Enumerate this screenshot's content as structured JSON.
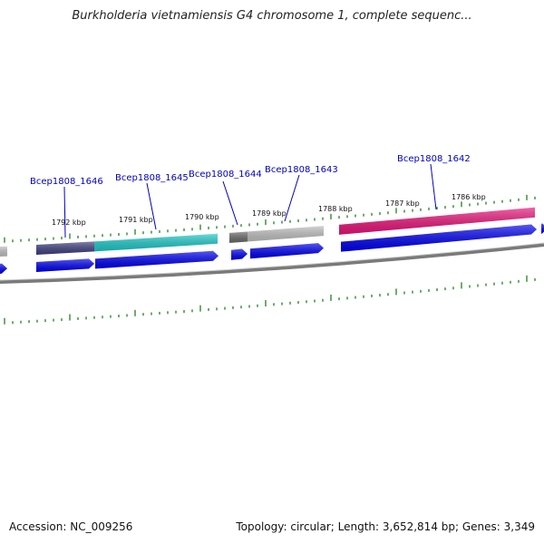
{
  "title": "Burkholderia vietnamiensis G4 chromosome 1, complete sequenc...",
  "footer": {
    "accession": "Accession: NC_009256",
    "stats": "Topology: circular; Length: 3,652,814 bp; Genes: 3,349"
  },
  "colors": {
    "backbone": "#7a7a7a",
    "tick": "#2e8b2e",
    "cds_arrow": "#0000ee",
    "label": "#0000c0"
  },
  "ticks": [
    {
      "label": "1792 kbp"
    },
    {
      "label": "1791 kbp"
    },
    {
      "label": "1790 kbp"
    },
    {
      "label": "1789 kbp"
    },
    {
      "label": "1788 kbp"
    },
    {
      "label": "1787 kbp"
    },
    {
      "label": "1786 kbp"
    }
  ],
  "genes": [
    {
      "name": "Bcep1808_1646",
      "color_a": "#3f3f7f",
      "color_b": "#1ec8c8"
    },
    {
      "name": "Bcep1808_1645",
      "color_a": "#1ec8c8",
      "color_b": "#1ec8c8"
    },
    {
      "name": "Bcep1808_1644",
      "color_a": "#6a6a6a",
      "color_b": "#c0c0c0"
    },
    {
      "name": "Bcep1808_1643",
      "color_a": "#c0c0c0",
      "color_b": "#c0c0c0"
    },
    {
      "name": "Bcep1808_1642",
      "color_a": "#e8147a",
      "color_b": "#ff3a9a"
    }
  ]
}
